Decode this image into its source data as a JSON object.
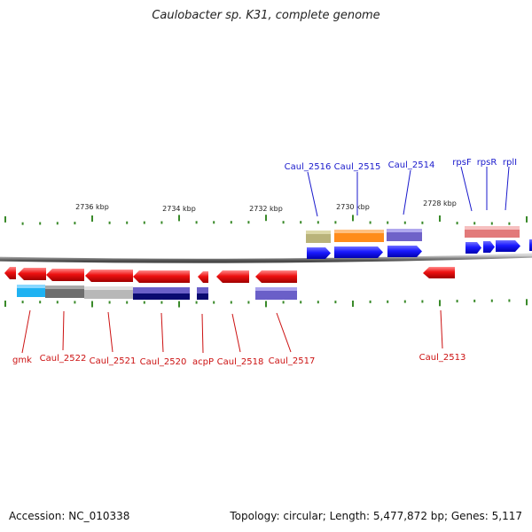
{
  "title": "Caulobacter sp. K31, complete genome",
  "footer": {
    "accession": "Accession: NC_010338",
    "summary": "Topology: circular; Length: 5,477,872 bp; Genes: 5,117"
  },
  "colors": {
    "background": "#ffffff",
    "forward_label": "#1a1acc",
    "reverse_label": "#cc1111",
    "gene_forward": "#1a1aff",
    "gene_reverse": "#ee1111",
    "tick": "#3a8a2a",
    "backbone": "#8a8a8a"
  },
  "map": {
    "scale_labels": [
      "2736 kbp",
      "2734 kbp",
      "2732 kbp",
      "2730 kbp",
      "2728 kbp"
    ],
    "forward_genes": [
      "Caul_2516",
      "Caul_2515",
      "Caul_2514",
      "rpsF",
      "rpsR",
      "rplI"
    ],
    "reverse_genes": [
      "gmk",
      "Caul_2522",
      "Caul_2521",
      "Caul_2520",
      "acpP",
      "Caul_2518",
      "Caul_2517",
      "Caul_2513"
    ]
  }
}
